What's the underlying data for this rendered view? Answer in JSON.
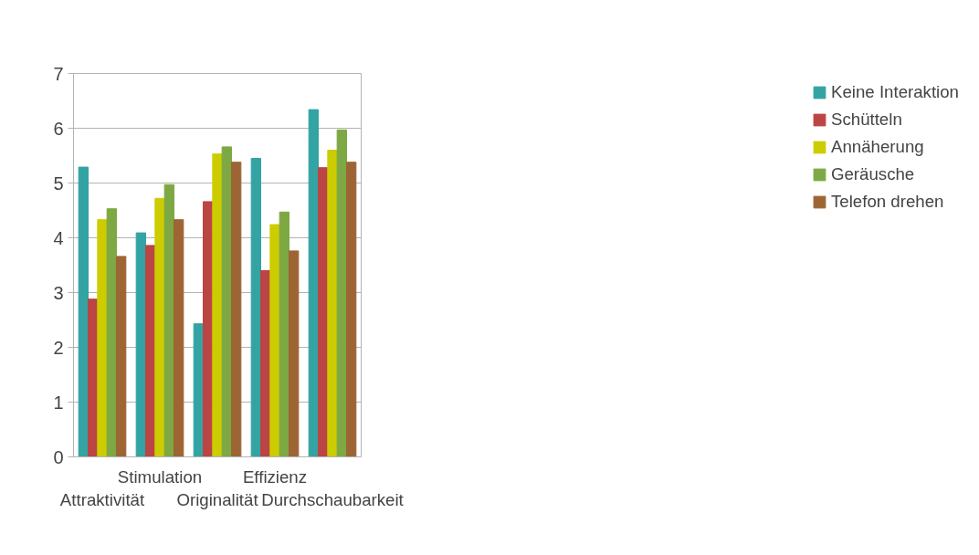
{
  "chart_data": {
    "type": "bar",
    "categories": [
      "Attraktivität",
      "Stimulation",
      "Originalität",
      "Effizienz",
      "Durchschaubarkeit"
    ],
    "series": [
      {
        "name": "Keine Interaktion",
        "color": "#33a3a3",
        "values": [
          5.29,
          4.09,
          2.43,
          5.45,
          6.34
        ]
      },
      {
        "name": "Schütteln",
        "color": "#bb4444",
        "values": [
          2.88,
          3.86,
          4.66,
          3.4,
          5.28
        ]
      },
      {
        "name": "Annäherung",
        "color": "#cccc00",
        "values": [
          4.33,
          4.72,
          5.53,
          4.24,
          5.6
        ]
      },
      {
        "name": "Geräusche",
        "color": "#7da843",
        "values": [
          4.53,
          4.97,
          5.66,
          4.47,
          5.97
        ]
      },
      {
        "name": "Telefon drehen",
        "color": "#9c6533",
        "values": [
          3.66,
          4.33,
          5.38,
          3.76,
          5.38
        ]
      }
    ],
    "ylim": [
      0,
      7
    ],
    "yticks": [
      0,
      1,
      2,
      3,
      4,
      5,
      6,
      7
    ],
    "grid": "y",
    "legend": "right"
  }
}
